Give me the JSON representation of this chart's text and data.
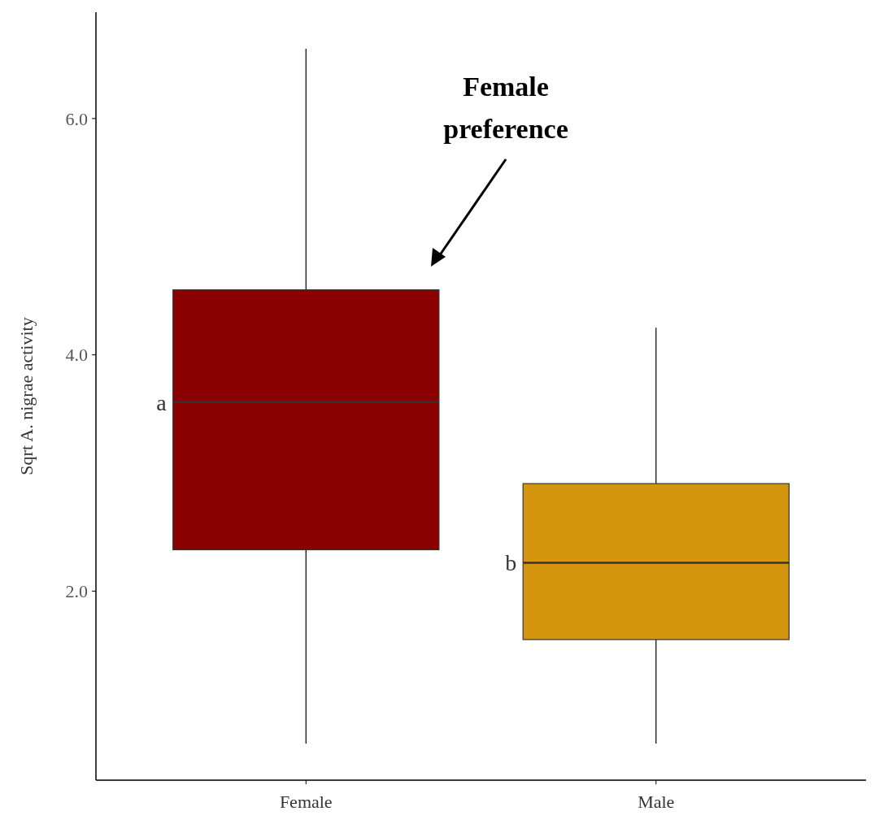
{
  "chart_data": {
    "type": "box",
    "ylabel": "Sqrt A. nigrae activity",
    "categories": [
      "Female",
      "Male"
    ],
    "series": [
      {
        "colors": [
          "#8b0000",
          "#d4960f"
        ],
        "boxes": [
          {
            "low": 0.71,
            "q1": 2.35,
            "median": 3.6,
            "q3": 4.55,
            "high": 6.59
          },
          {
            "low": 0.71,
            "q1": 1.59,
            "median": 2.24,
            "q3": 2.91,
            "high": 4.23
          }
        ]
      }
    ],
    "ylim": [
      0.4,
      6.9
    ],
    "yticks": [
      {
        "value": 2,
        "label": "2.0"
      },
      {
        "value": 4,
        "label": "4.0"
      },
      {
        "value": 6,
        "label": "6.0"
      }
    ],
    "grid": false,
    "annotations": [
      "a",
      "b",
      "Female preference"
    ]
  }
}
